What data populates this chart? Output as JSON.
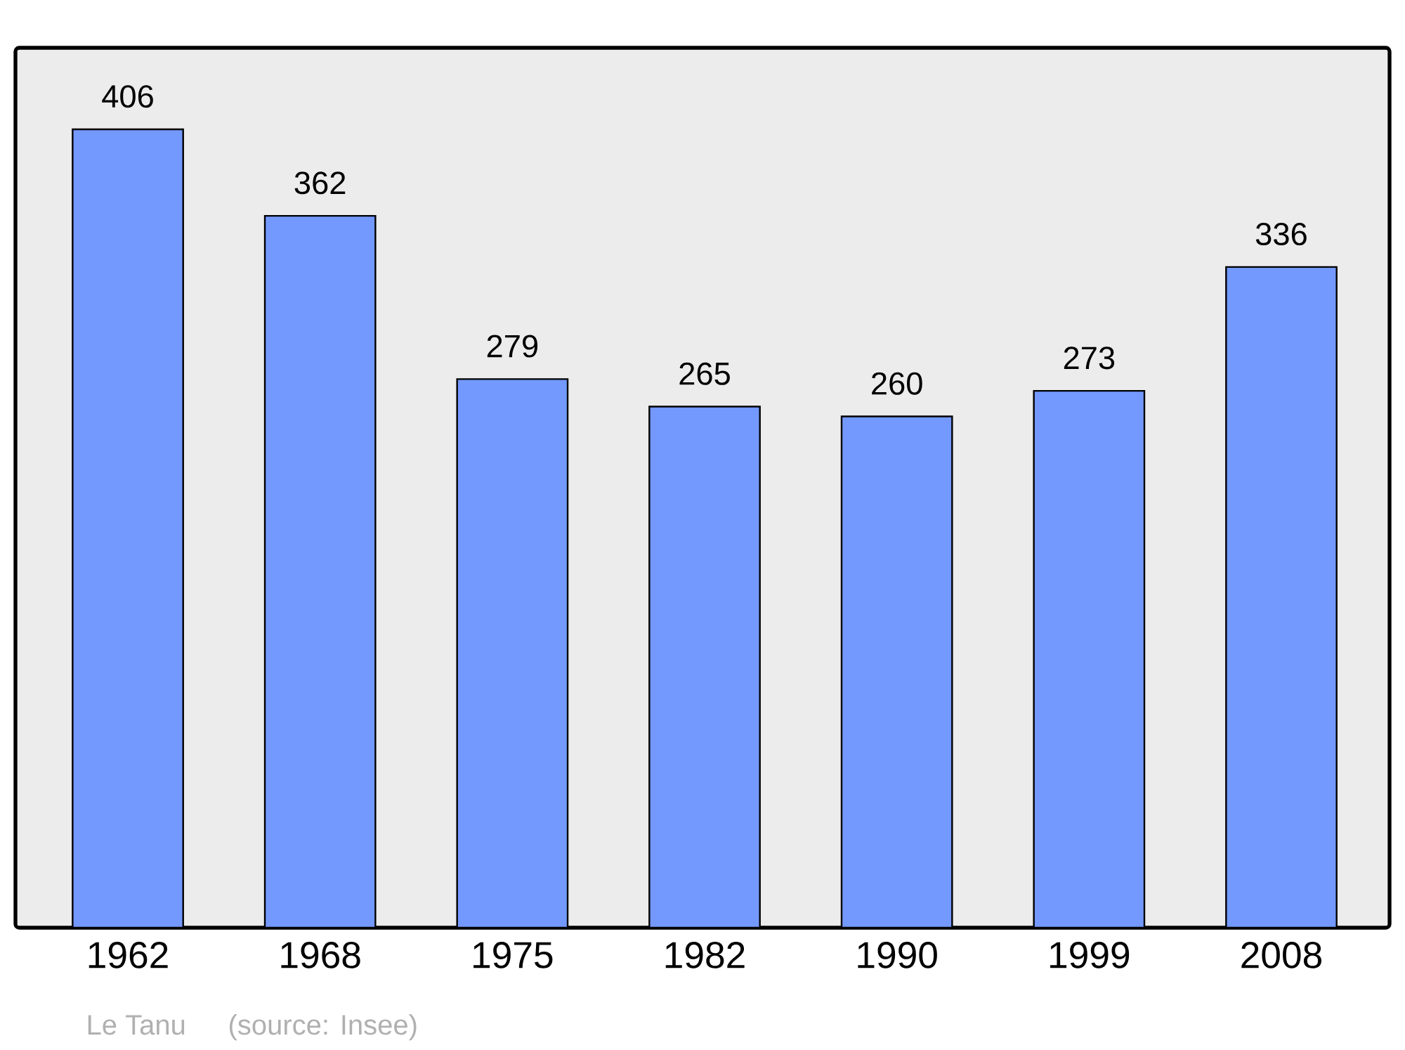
{
  "chart_data": {
    "type": "bar",
    "categories": [
      "1962",
      "1968",
      "1975",
      "1982",
      "1990",
      "1999",
      "2008"
    ],
    "values": [
      406,
      362,
      279,
      265,
      260,
      273,
      336
    ],
    "color": "#7399ff",
    "data_labels": true,
    "annotations": [
      "Le Tanu",
      "(source: Insee)"
    ]
  }
}
